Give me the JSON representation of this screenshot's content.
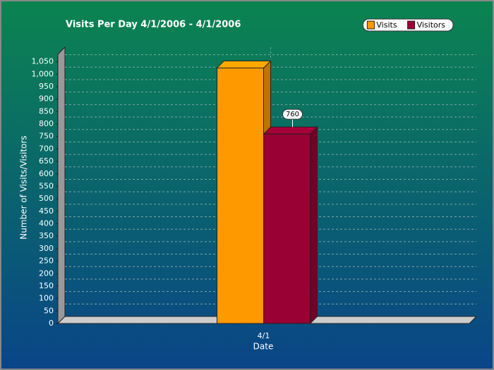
{
  "chart_data": {
    "type": "bar3d",
    "title": "Visits Per Day 4/1/2006  - 4/1/2006",
    "x_label": "Date",
    "y_label": "Number of Visits/Visitors",
    "categories": [
      "4/1"
    ],
    "series": [
      {
        "name": "Visits",
        "color": "#ff9900",
        "values": [
          1025
        ]
      },
      {
        "name": "Visitors",
        "color": "#990033",
        "values": [
          760
        ],
        "show_value_labels": true
      }
    ],
    "ylim": [
      0,
      1080
    ],
    "yticks": [
      0,
      50,
      100,
      150,
      200,
      250,
      300,
      350,
      400,
      450,
      500,
      550,
      600,
      650,
      700,
      750,
      800,
      850,
      900,
      950,
      {
        "value": 1000,
        "label": "1,000"
      },
      {
        "value": 1050,
        "label": "1,050"
      }
    ],
    "grid": true,
    "legend": "top-right"
  }
}
